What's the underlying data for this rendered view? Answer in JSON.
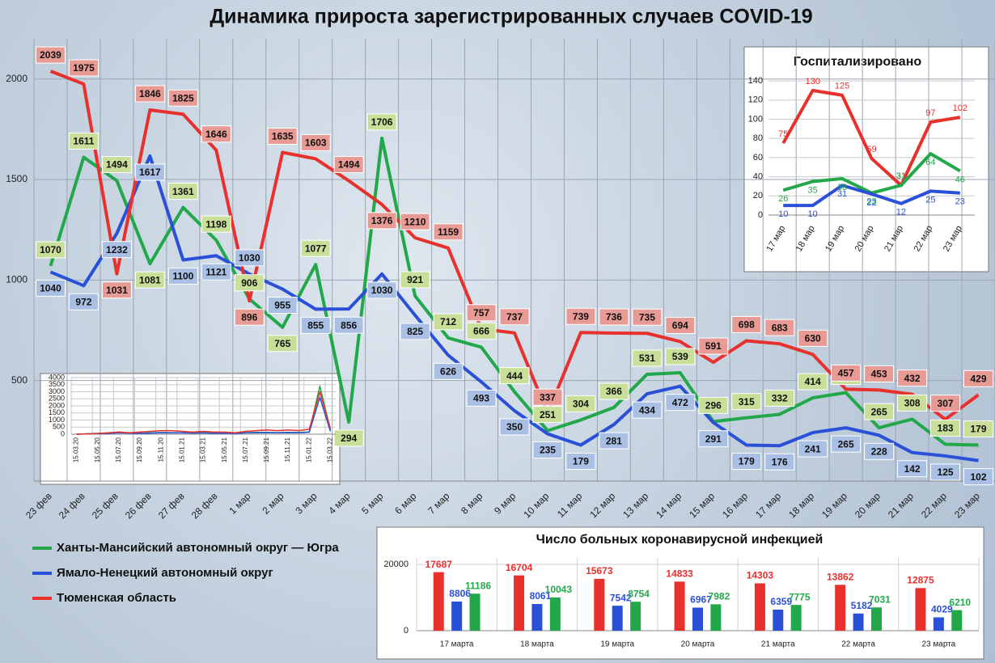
{
  "chart_data": [
    {
      "type": "line",
      "title": "Динамика прироста зарегистрированных случаев COVID-19",
      "categories": [
        "23 фев",
        "24 фев",
        "25 фев",
        "26 фев",
        "27 фев",
        "28 фев",
        "1 мар",
        "2 мар",
        "3 мар",
        "4 мар",
        "5 мар",
        "6 мар",
        "7 мар",
        "8 мар",
        "9 мар",
        "10 мар",
        "11 мар",
        "12 мар",
        "13 мар",
        "14 мар",
        "15 мар",
        "16 мар",
        "17 мар",
        "18 мар",
        "19 мар",
        "20 мар",
        "21 мар",
        "22 мар",
        "23 мар"
      ],
      "series": [
        {
          "name": "Ханты-Мансийский автономный округ — Югра",
          "color": "#22a84a",
          "values": [
            1070,
            1611,
            1494,
            1081,
            1361,
            1198,
            906,
            765,
            1077,
            294,
            1706,
            921,
            712,
            666,
            444,
            251,
            304,
            366,
            531,
            539,
            296,
            315,
            332,
            414,
            440,
            265,
            308,
            183,
            179
          ]
        },
        {
          "name": "Ямало-Ненецкий автономный округ",
          "color": "#2a50d8",
          "values": [
            1040,
            972,
            1232,
            1617,
            1100,
            1121,
            1030,
            955,
            855,
            856,
            1030,
            825,
            626,
            493,
            350,
            235,
            179,
            281,
            434,
            472,
            291,
            179,
            176,
            241,
            265,
            228,
            142,
            125,
            102
          ]
        },
        {
          "name": "Тюменская область",
          "color": "#e8302c",
          "values": [
            2039,
            1975,
            1031,
            1846,
            1825,
            1646,
            896,
            1635,
            1603,
            1494,
            1376,
            1210,
            1159,
            757,
            737,
            337,
            739,
            736,
            735,
            694,
            591,
            698,
            683,
            630,
            457,
            453,
            432,
            307,
            429
          ]
        }
      ],
      "ylim": [
        0,
        2200
      ],
      "yticks": [
        500,
        1000,
        1500,
        2000
      ],
      "grid": true
    },
    {
      "type": "line",
      "categories": [
        "15.03.20",
        null,
        "15.05.20",
        null,
        "15.07.20",
        null,
        "15.09.20",
        null,
        "15.11.20",
        null,
        "15.01.21",
        null,
        "15.03.21",
        null,
        "15.05.21",
        null,
        "15.07.21",
        null,
        "15.09.21",
        null,
        "15.11.21",
        null,
        "15.01.22",
        null,
        "15.03.22"
      ],
      "series": [
        {
          "color": "#22a84a",
          "values": [
            0,
            30,
            60,
            80,
            150,
            90,
            70,
            100,
            120,
            110,
            100,
            90,
            100,
            80,
            90,
            70,
            110,
            130,
            120,
            110,
            130,
            120,
            160,
            3400,
            300
          ]
        },
        {
          "color": "#2a50d8",
          "values": [
            0,
            20,
            40,
            60,
            90,
            70,
            60,
            80,
            90,
            100,
            90,
            80,
            90,
            70,
            80,
            60,
            90,
            100,
            110,
            100,
            110,
            100,
            140,
            2600,
            200
          ]
        },
        {
          "color": "#e8302c",
          "values": [
            0,
            20,
            50,
            100,
            150,
            100,
            150,
            200,
            250,
            250,
            200,
            150,
            200,
            150,
            150,
            100,
            200,
            250,
            300,
            250,
            300,
            250,
            350,
            3000,
            400
          ]
        }
      ],
      "ylim": [
        0,
        4000
      ],
      "yticks": [
        0,
        500,
        1000,
        1500,
        2000,
        2500,
        3000,
        3500,
        4000
      ],
      "grid": true
    },
    {
      "type": "line",
      "title": "Госпитализировано",
      "categories": [
        "17 мар",
        "18 мар",
        "19 мар",
        "20 мар",
        "21 мар",
        "22 мар",
        "23 мар"
      ],
      "series": [
        {
          "color": "#e8302c",
          "values": [
            75,
            130,
            125,
            59,
            31,
            97,
            102
          ]
        },
        {
          "color": "#22a84a",
          "values": [
            26,
            35,
            38,
            23,
            31,
            64,
            46
          ]
        },
        {
          "color": "#2a50d8",
          "values": [
            10,
            10,
            31,
            22,
            12,
            25,
            23
          ]
        }
      ],
      "ylim": [
        0,
        140
      ],
      "yticks": [
        0,
        20,
        40,
        60,
        80,
        100,
        120,
        140
      ],
      "grid": true
    },
    {
      "type": "bar",
      "title": "Число больных  коронавирусной  инфекцией",
      "categories": [
        "17 марта",
        "18 марта",
        "19 марта",
        "20 марта",
        "21 марта",
        "22 марта",
        "23 марта"
      ],
      "series": [
        {
          "color": "#e8302c",
          "values": [
            17687,
            16704,
            15673,
            14833,
            14303,
            13862,
            12875
          ]
        },
        {
          "color": "#2a50d8",
          "values": [
            8806,
            8061,
            7542,
            6967,
            6359,
            5182,
            4029
          ]
        },
        {
          "color": "#22a84a",
          "values": [
            11186,
            10043,
            8754,
            7982,
            7775,
            7031,
            6210
          ]
        }
      ],
      "ylim": [
        0,
        22000
      ],
      "yticks": [
        0,
        20000
      ],
      "grid": true
    }
  ]
}
